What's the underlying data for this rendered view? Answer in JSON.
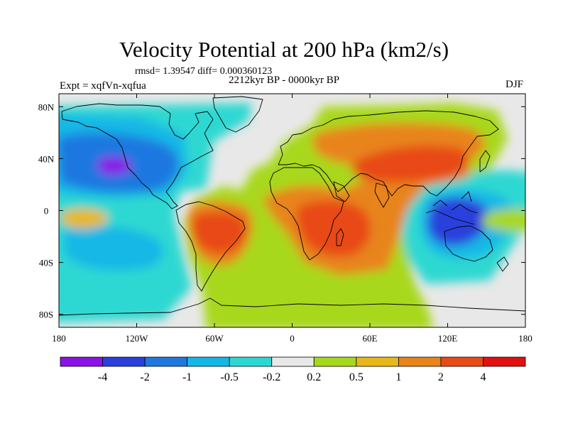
{
  "title": "Velocity Potential at 200 hPa (km2/s)",
  "stats_line": "rmsd= 1.39547 diff= 0.000360123",
  "period": "2212kyr BP - 0000kyr BP",
  "experiment": "Expt = xqfVn-xqfua",
  "season": "DJF",
  "map": {
    "projection": "cylindrical equidistant",
    "lon_range": [
      -180,
      180
    ],
    "lat_range": [
      -90,
      90
    ],
    "x_ticks": [
      {
        "value": -180,
        "label": "180"
      },
      {
        "value": -120,
        "label": "120W"
      },
      {
        "value": -60,
        "label": "60W"
      },
      {
        "value": 0,
        "label": "0"
      },
      {
        "value": 60,
        "label": "60E"
      },
      {
        "value": 120,
        "label": "120E"
      },
      {
        "value": 180,
        "label": "180"
      }
    ],
    "y_ticks": [
      {
        "value": 80,
        "label": "80N"
      },
      {
        "value": 40,
        "label": "40N"
      },
      {
        "value": 0,
        "label": "0"
      },
      {
        "value": -40,
        "label": "40S"
      },
      {
        "value": -80,
        "label": "80S"
      }
    ]
  },
  "colorbar": {
    "colors": [
      "#8a12e6",
      "#2a3fdc",
      "#1f78e0",
      "#14b8e6",
      "#2ed8d2",
      "#e8e8e8",
      "#a8d81c",
      "#e8b81a",
      "#e8841a",
      "#e84a16",
      "#e21010"
    ],
    "labels": [
      "-4",
      "-2",
      "-1",
      "-0.5",
      "-0.2",
      "0.2",
      "0.5",
      "1",
      "2",
      "4"
    ]
  }
}
